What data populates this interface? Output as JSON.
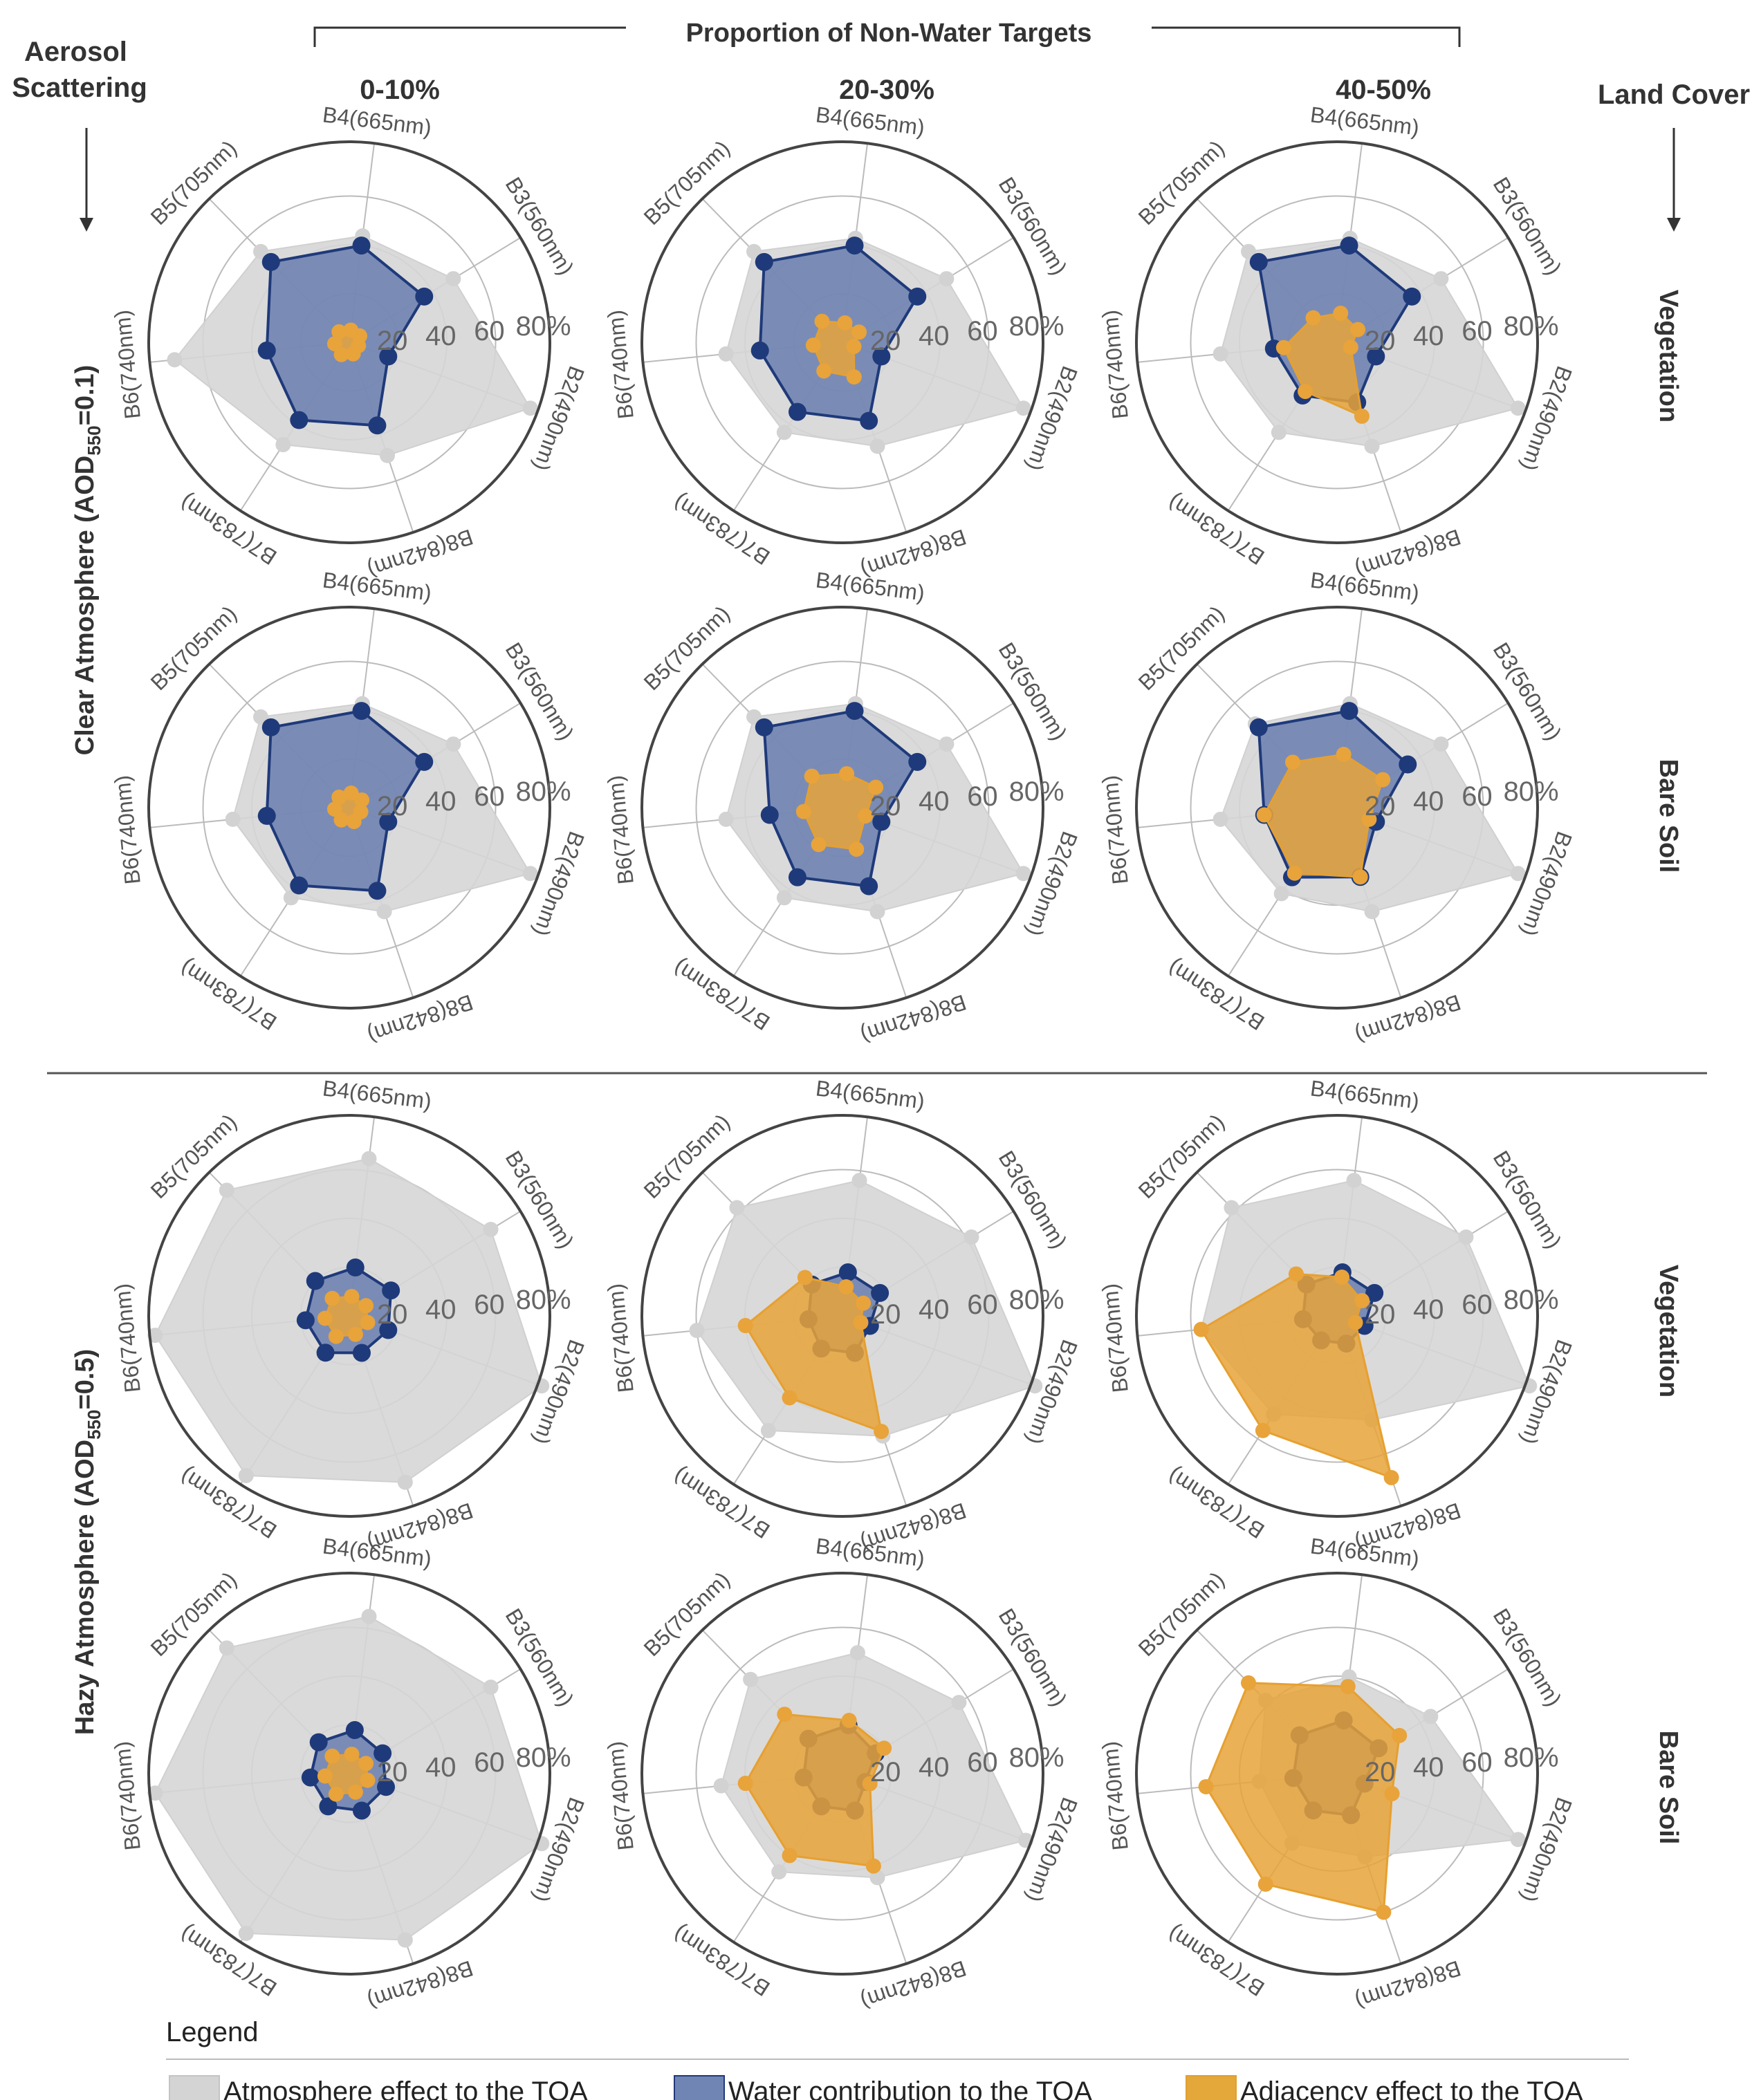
{
  "figure": {
    "column_group_title": "Proportion of Non-Water Targets",
    "row_axis_title": "Aerosol Scattering",
    "col_axis_title": "Land Cover",
    "column_titles": [
      "0-10%",
      "20-30%",
      "40-50%"
    ],
    "row_group_titles": [
      {
        "main": "Clear Atmosphere  (AOD",
        "sub": "550",
        "tail": "=0.1)"
      },
      {
        "main": "Hazy Atmosphere  (AOD",
        "sub": "550",
        "tail": "=0.5)"
      }
    ],
    "row_titles": [
      "Vegetation",
      "Bare Soil",
      "Vegetation",
      "Bare Soil"
    ],
    "legend_title": "Legend",
    "legend": [
      {
        "label": "Atmosphere effect to the TOA",
        "color": "#d4d4d4",
        "stroke": "#c4c4c4"
      },
      {
        "label": "Water contribution to the TOA",
        "color": "#7185b5",
        "stroke": "#1f3a7a"
      },
      {
        "label": "Adjacency effect to the TOA",
        "color": "#e3a73a",
        "stroke": "#e0a030"
      }
    ],
    "colors": {
      "atmosphere": "#d9d9d9",
      "water": "#1f3a7a",
      "adjacency": "#e8a33a",
      "ring": "#444444",
      "grid": "#bbbbbb"
    }
  },
  "chart_data": {
    "type": "radar",
    "bands": [
      "B2(490nm)",
      "B3(560nm)",
      "B4(665nm)",
      "B5(705nm)",
      "B6(740nm)",
      "B7(783nm)",
      "B8(842nm)"
    ],
    "r_ticks": [
      "20",
      "40",
      "60",
      "80%"
    ],
    "r_range": [
      0,
      80
    ],
    "series_names": [
      "Atmosphere effect to the TOA",
      "Water contribution to the TOA",
      "Adjacency effect to the TOA"
    ],
    "panels": [
      {
        "atmosphere": "clear",
        "land_cover": "Vegetation",
        "non_water": "0-10%",
        "atmosphere_effect": [
          79,
          50,
          44,
          52,
          72,
          50,
          49
        ],
        "water": [
          17,
          36,
          40,
          46,
          34,
          38,
          36
        ],
        "adjacency": [
          4,
          5,
          5,
          6,
          6,
          6,
          5
        ]
      },
      {
        "atmosphere": "clear",
        "land_cover": "Vegetation",
        "non_water": "20-30%",
        "atmosphere_effect": [
          79,
          50,
          43,
          52,
          48,
          44,
          45
        ],
        "water": [
          17,
          36,
          40,
          46,
          34,
          34,
          34
        ],
        "adjacency": [
          5,
          8,
          8,
          12,
          12,
          14,
          15
        ]
      },
      {
        "atmosphere": "clear",
        "land_cover": "Vegetation",
        "non_water": "40-50%",
        "atmosphere_effect": [
          79,
          50,
          43,
          52,
          48,
          44,
          45
        ],
        "water": [
          17,
          36,
          40,
          46,
          26,
          26,
          26
        ],
        "adjacency": [
          6,
          10,
          12,
          14,
          22,
          24,
          32
        ]
      },
      {
        "atmosphere": "clear",
        "land_cover": "Bare Soil",
        "non_water": "0-10%",
        "atmosphere_effect": [
          79,
          50,
          43,
          52,
          48,
          44,
          45
        ],
        "water": [
          17,
          36,
          40,
          46,
          34,
          38,
          36
        ],
        "adjacency": [
          5,
          6,
          6,
          6,
          6,
          6,
          6
        ]
      },
      {
        "atmosphere": "clear",
        "land_cover": "Bare Soil",
        "non_water": "20-30%",
        "atmosphere_effect": [
          79,
          50,
          43,
          52,
          48,
          44,
          45
        ],
        "water": [
          17,
          36,
          40,
          46,
          30,
          34,
          34
        ],
        "adjacency": [
          10,
          16,
          14,
          18,
          16,
          18,
          18
        ]
      },
      {
        "atmosphere": "clear",
        "land_cover": "Bare Soil",
        "non_water": "40-50%",
        "atmosphere_effect": [
          79,
          50,
          43,
          48,
          48,
          42,
          45
        ],
        "water": [
          17,
          34,
          40,
          46,
          30,
          34,
          30
        ],
        "adjacency": [
          14,
          22,
          22,
          26,
          30,
          32,
          30
        ]
      },
      {
        "atmosphere": "hazy",
        "land_cover": "Vegetation",
        "non_water": "0-10%",
        "atmosphere_effect": [
          84,
          68,
          65,
          72,
          80,
          78,
          72
        ],
        "water": [
          17,
          20,
          20,
          20,
          18,
          18,
          16
        ],
        "adjacency": [
          8,
          8,
          8,
          10,
          10,
          10,
          8
        ]
      },
      {
        "atmosphere": "hazy",
        "land_cover": "Vegetation",
        "non_water": "20-30%",
        "atmosphere_effect": [
          84,
          62,
          56,
          62,
          60,
          56,
          52
        ],
        "water": [
          12,
          18,
          18,
          18,
          14,
          16,
          16
        ],
        "adjacency": [
          8,
          10,
          12,
          22,
          40,
          40,
          50
        ]
      },
      {
        "atmosphere": "hazy",
        "land_cover": "Vegetation",
        "non_water": "40-50%",
        "atmosphere_effect": [
          84,
          62,
          56,
          62,
          56,
          48,
          45
        ],
        "water": [
          12,
          18,
          18,
          18,
          14,
          12,
          12
        ],
        "adjacency": [
          8,
          12,
          16,
          24,
          56,
          56,
          70
        ]
      },
      {
        "atmosphere": "hazy",
        "land_cover": "Bare Soil",
        "non_water": "0-10%",
        "atmosphere_effect": [
          84,
          68,
          65,
          72,
          80,
          78,
          72
        ],
        "water": [
          16,
          16,
          18,
          18,
          16,
          16,
          16
        ],
        "adjacency": [
          8,
          8,
          8,
          10,
          10,
          10,
          8
        ]
      },
      {
        "atmosphere": "hazy",
        "land_cover": "Bare Soil",
        "non_water": "20-30%",
        "atmosphere_effect": [
          80,
          56,
          50,
          54,
          50,
          48,
          45
        ],
        "water": [
          10,
          16,
          20,
          20,
          16,
          16,
          16
        ],
        "adjacency": [
          12,
          20,
          22,
          34,
          40,
          40,
          40
        ]
      },
      {
        "atmosphere": "hazy",
        "land_cover": "Bare Soil",
        "non_water": "40-50%",
        "atmosphere_effect": [
          79,
          45,
          40,
          42,
          32,
          34,
          36
        ],
        "water": [
          12,
          20,
          22,
          22,
          18,
          18,
          18
        ],
        "adjacency": [
          24,
          30,
          36,
          52,
          54,
          54,
          60
        ]
      }
    ]
  }
}
